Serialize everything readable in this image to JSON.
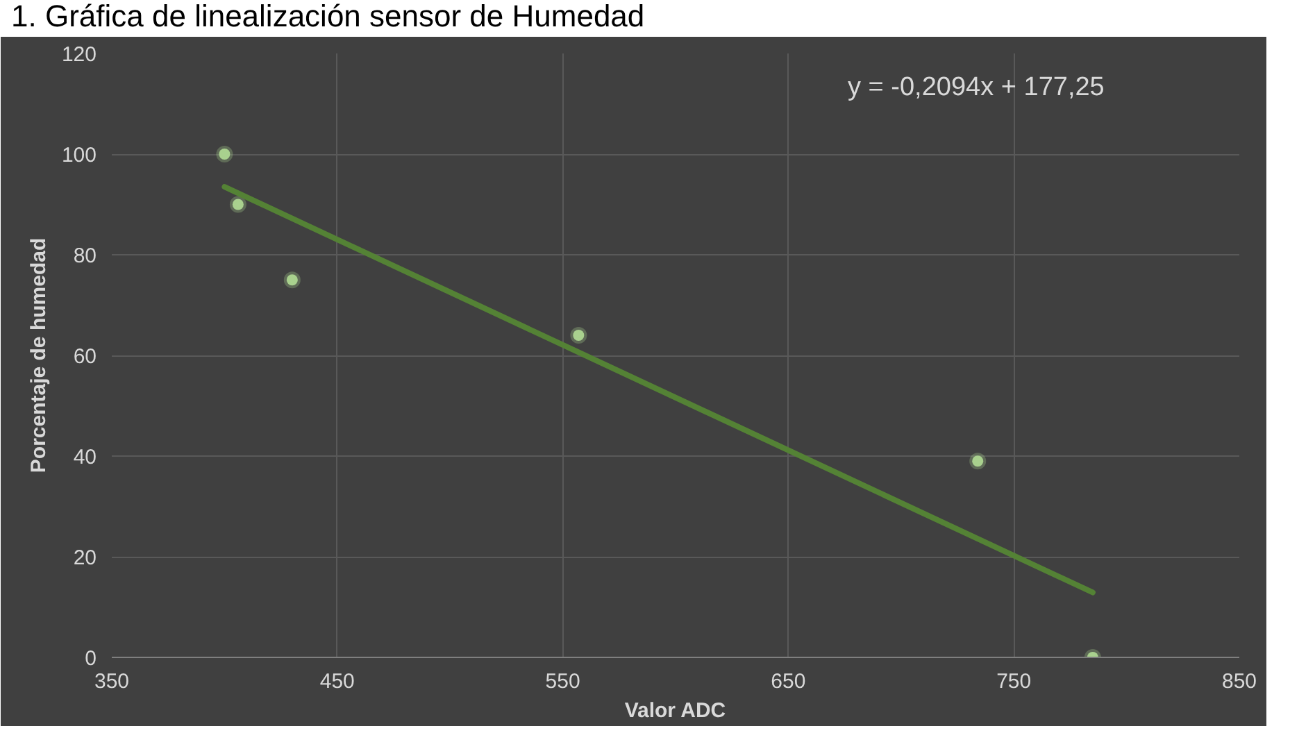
{
  "chart_data": {
    "type": "scatter",
    "title": "1. Gráfica de linealización sensor de Humedad",
    "xlabel": "Valor ADC",
    "ylabel": "Porcentaje de humedad",
    "series": [
      {
        "color": "#a9d18e",
        "marker": "circle",
        "x": [
          400,
          406,
          430,
          557,
          734,
          785
        ],
        "values": [
          100,
          90,
          75,
          64,
          39,
          0
        ]
      },
      {
        "type": "line",
        "marker": "none",
        "color": "#548235",
        "x": [
          400,
          785
        ],
        "values": [
          93.5,
          12.9
        ]
      }
    ],
    "annotations": [
      "y = -0,2094x + 177,25"
    ],
    "xlim": [
      350,
      850
    ],
    "xticks": [
      350,
      450,
      550,
      650,
      750,
      850
    ],
    "ylim": [
      0,
      120
    ],
    "yticks": [
      0,
      20,
      40,
      60,
      80,
      100,
      120
    ],
    "grid": true
  }
}
